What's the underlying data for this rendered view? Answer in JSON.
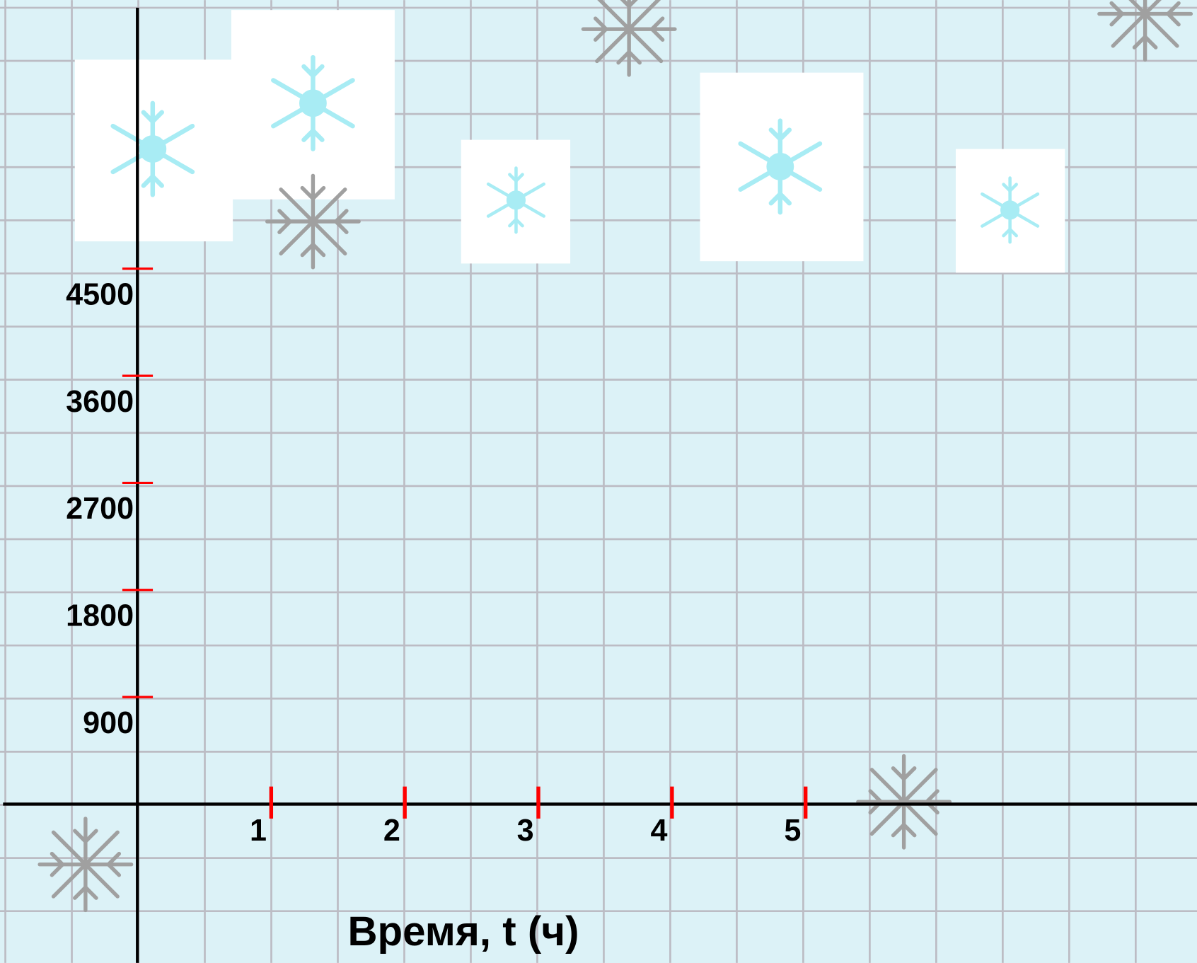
{
  "chart_data": {
    "type": "line",
    "xlabel": "Время, t (ч)",
    "xlim": [
      -1.03,
      7.93
    ],
    "xticks": [
      1,
      2,
      3,
      4,
      5
    ],
    "ylim": [
      -1335,
      6758
    ],
    "yticks": [
      900,
      1800,
      2700,
      3600,
      4500
    ],
    "grid": true,
    "tick_color": "#ff0000"
  }
}
